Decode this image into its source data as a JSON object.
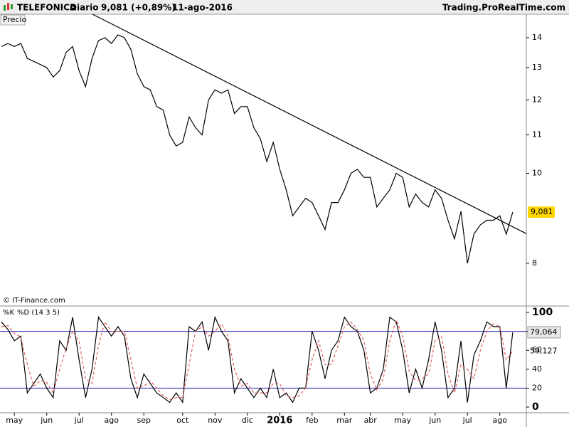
{
  "header": {
    "symbol": "TELEFONICA",
    "period": "Diario",
    "quote": "9,081 (+0,89%)",
    "date": "11-ago-2016",
    "site": "Trading.ProRealTime.com",
    "source": "© IT-Finance.com"
  },
  "chart_data": [
    {
      "type": "line",
      "categories": [
        null,
        null,
        "may",
        null,
        null,
        null,
        null,
        "jun",
        null,
        null,
        null,
        null,
        "jul",
        null,
        null,
        null,
        null,
        "ago",
        null,
        null,
        null,
        null,
        "sep",
        null,
        null,
        null,
        null,
        null,
        "oct",
        null,
        null,
        null,
        null,
        "nov",
        null,
        null,
        null,
        null,
        "dic",
        null,
        null,
        null,
        null,
        "2016",
        null,
        null,
        null,
        null,
        "feb",
        null,
        null,
        null,
        null,
        "mar",
        null,
        null,
        null,
        "abr",
        null,
        null,
        null,
        null,
        "may",
        null,
        null,
        null,
        null,
        "jun",
        null,
        null,
        null,
        null,
        "jul",
        null,
        null,
        null,
        null,
        "ago",
        null,
        null
      ],
      "series": [
        {
          "name": "Precio",
          "color": "#000000",
          "values": [
            13.7,
            13.8,
            13.7,
            13.8,
            13.3,
            13.2,
            13.1,
            13.0,
            12.7,
            12.9,
            13.5,
            13.7,
            12.9,
            12.4,
            13.3,
            13.9,
            14.0,
            13.8,
            14.1,
            14.0,
            13.6,
            12.8,
            12.4,
            12.3,
            11.8,
            11.7,
            11.0,
            10.7,
            10.8,
            11.5,
            11.2,
            11.0,
            12.0,
            12.3,
            12.2,
            12.3,
            11.6,
            11.8,
            11.8,
            11.2,
            10.9,
            10.3,
            10.8,
            10.1,
            9.6,
            9.0,
            9.2,
            9.4,
            9.3,
            9.0,
            8.7,
            9.3,
            9.3,
            9.6,
            10.0,
            10.1,
            9.9,
            9.9,
            9.2,
            9.4,
            9.6,
            10.0,
            9.9,
            9.2,
            9.5,
            9.3,
            9.2,
            9.6,
            9.4,
            8.9,
            8.5,
            9.1,
            8.0,
            8.6,
            8.8,
            8.9,
            8.9,
            9.0,
            8.6,
            9.081
          ],
          "last_label": "9,081",
          "label_color": "#ffd700"
        }
      ],
      "ylim": [
        7.22,
        14.84
      ],
      "yticks": [
        8,
        10,
        11,
        12,
        13,
        14
      ],
      "log_scale": true,
      "trendline": {
        "x": [
          14.07,
          81.1
        ],
        "y": [
          14.84,
          8.61
        ],
        "color": "#000000"
      }
    },
    {
      "type": "line",
      "series": [
        {
          "name": "%K",
          "color": "#000000",
          "values": [
            90,
            82,
            70,
            75,
            15,
            25,
            35,
            20,
            10,
            70,
            60,
            95,
            50,
            10,
            40,
            95,
            85,
            75,
            85,
            75,
            30,
            10,
            35,
            25,
            15,
            10,
            5,
            15,
            5,
            85,
            80,
            90,
            60,
            95,
            80,
            70,
            15,
            30,
            20,
            10,
            20,
            10,
            40,
            10,
            15,
            5,
            20,
            20,
            80,
            60,
            30,
            60,
            70,
            95,
            85,
            80,
            60,
            15,
            20,
            40,
            95,
            90,
            60,
            15,
            40,
            20,
            50,
            90,
            60,
            10,
            20,
            70,
            5,
            55,
            70,
            90,
            85,
            85,
            20,
            79.064
          ],
          "last_label": "79,064"
        },
        {
          "name": "%D (14 3 5)",
          "color": "#e06060",
          "values": [
            85,
            86,
            78,
            74,
            45,
            22,
            28,
            26,
            15,
            40,
            62,
            80,
            70,
            30,
            25,
            65,
            90,
            80,
            80,
            80,
            50,
            20,
            22,
            28,
            20,
            12,
            8,
            10,
            10,
            45,
            80,
            85,
            75,
            80,
            88,
            75,
            40,
            22,
            25,
            15,
            15,
            15,
            25,
            25,
            12,
            10,
            12,
            20,
            50,
            70,
            45,
            45,
            65,
            85,
            90,
            82,
            70,
            35,
            18,
            30,
            70,
            92,
            75,
            38,
            28,
            30,
            35,
            70,
            75,
            35,
            15,
            45,
            40,
            30,
            60,
            80,
            88,
            85,
            50,
            59.127
          ],
          "last_label": "59,127"
        }
      ],
      "ylim": [
        -6,
        105.3
      ],
      "yticks": [
        0,
        20,
        40,
        60,
        80,
        100
      ],
      "levels": [
        20,
        80
      ],
      "level_color": "#2020b0"
    }
  ]
}
